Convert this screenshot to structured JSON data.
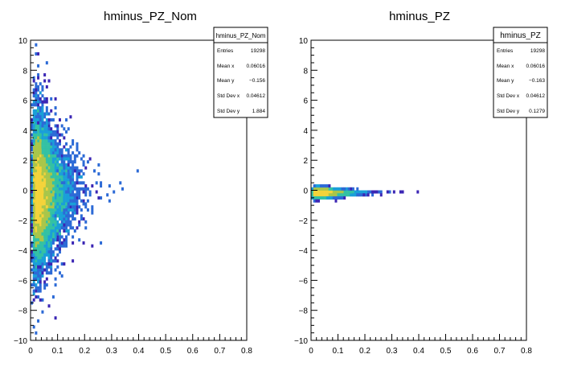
{
  "chart_data": [
    {
      "type": "heatmap",
      "title": "hminus_PZ_Nom",
      "xlim": [
        0,
        0.8
      ],
      "ylim": [
        -10,
        10
      ],
      "x_ticks": [
        "0",
        "0.1",
        "0.2",
        "0.3",
        "0.4",
        "0.5",
        "0.6",
        "0.7",
        "0.8"
      ],
      "y_ticks": [
        "10",
        "8",
        "6",
        "4",
        "2",
        "0",
        "−2",
        "−4",
        "−6",
        "−8",
        "−10"
      ],
      "stats": {
        "name": "hminus_PZ_Nom",
        "rows": [
          {
            "label": "Entries",
            "value": "19298"
          },
          {
            "label": "Mean x",
            "value": "0.06016"
          },
          {
            "label": "Mean y",
            "value": "−0.156"
          },
          {
            "label": "Std Dev x",
            "value": "0.04612"
          },
          {
            "label": "Std Dev y",
            "value": "1.884"
          }
        ]
      },
      "distribution": {
        "x_peak": 0.025,
        "x_spread": 0.06,
        "x_max": 0.6,
        "y_center": -0.156,
        "y_std": 1.884
      },
      "palette": [
        "#3b26b4",
        "#2c6ad6",
        "#1a9fd8",
        "#33c1a4",
        "#a9c64a",
        "#f4d33a"
      ]
    },
    {
      "type": "heatmap",
      "title": "hminus_PZ",
      "xlim": [
        0,
        0.8
      ],
      "ylim": [
        -10,
        10
      ],
      "x_ticks": [
        "0",
        "0.1",
        "0.2",
        "0.3",
        "0.4",
        "0.5",
        "0.6",
        "0.7",
        "0.8"
      ],
      "y_ticks": [
        "10",
        "8",
        "6",
        "4",
        "2",
        "0",
        "−2",
        "−4",
        "−6",
        "−8",
        "−10"
      ],
      "stats": {
        "name": "hminus_PZ",
        "rows": [
          {
            "label": "Entries",
            "value": "19298"
          },
          {
            "label": "Mean x",
            "value": "0.06016"
          },
          {
            "label": "Mean y",
            "value": "−0.163"
          },
          {
            "label": "Std Dev x",
            "value": "0.04612"
          },
          {
            "label": "Std Dev y",
            "value": "0.1279"
          }
        ]
      },
      "distribution": {
        "x_peak": 0.025,
        "x_spread": 0.06,
        "x_max": 0.6,
        "y_center": -0.163,
        "y_std": 0.1279
      },
      "palette": [
        "#3b26b4",
        "#2c6ad6",
        "#1a9fd8",
        "#33c1a4",
        "#a9c64a",
        "#f4d33a"
      ]
    }
  ]
}
